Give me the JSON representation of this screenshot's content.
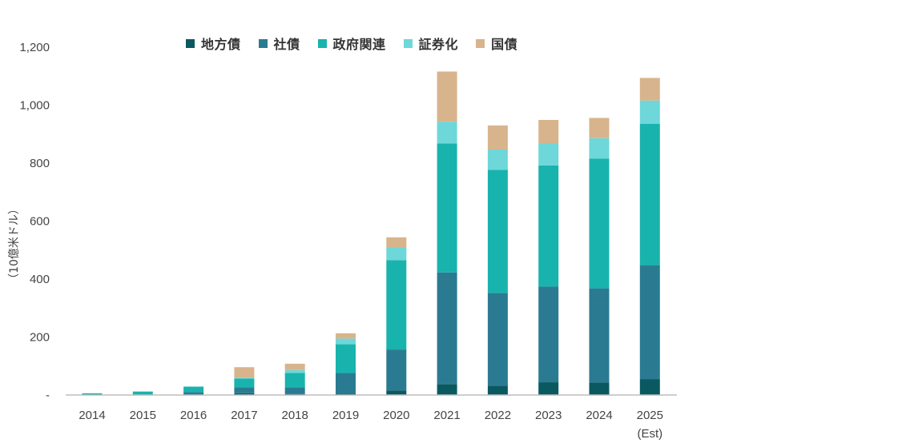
{
  "chart_data": {
    "type": "bar",
    "stacked": true,
    "ylabel": "（10億米ドル）",
    "ylim": [
      0,
      1200
    ],
    "yticks": [
      {
        "value": 0,
        "label": "-"
      },
      {
        "value": 200,
        "label": "200"
      },
      {
        "value": 400,
        "label": "400"
      },
      {
        "value": 600,
        "label": "600"
      },
      {
        "value": 800,
        "label": "800"
      },
      {
        "value": 1000,
        "label": "1,000"
      },
      {
        "value": 1200,
        "label": "1,200"
      }
    ],
    "grid": false,
    "legend_position": "top",
    "categories": [
      "2014",
      "2015",
      "2016",
      "2017",
      "2018",
      "2019",
      "2020",
      "2021",
      "2022",
      "2023",
      "2024",
      "2025"
    ],
    "category_sublabels": [
      "",
      "",
      "",
      "",
      "",
      "",
      "",
      "",
      "",
      "",
      "",
      "(Est)"
    ],
    "series": [
      {
        "name": "地方債",
        "color": "#0a5961",
        "values": [
          0,
          0,
          1,
          6,
          3,
          5,
          16,
          38,
          32,
          44,
          43,
          55
        ]
      },
      {
        "name": "社債",
        "color": "#2a7b92",
        "values": [
          0,
          0,
          9,
          21,
          23,
          71,
          141,
          385,
          320,
          330,
          325,
          393
        ]
      },
      {
        "name": "政府関連",
        "color": "#19b3ad",
        "values": [
          6,
          12,
          19,
          30,
          50,
          99,
          308,
          445,
          425,
          418,
          448,
          488
        ]
      },
      {
        "name": "証券化",
        "color": "#6dd7d9",
        "values": [
          0,
          0,
          0,
          3,
          10,
          20,
          44,
          75,
          70,
          77,
          70,
          80
        ]
      },
      {
        "name": "国債",
        "color": "#d8b48d",
        "values": [
          0,
          0,
          0,
          36,
          22,
          18,
          35,
          173,
          83,
          80,
          70,
          78
        ]
      }
    ]
  }
}
